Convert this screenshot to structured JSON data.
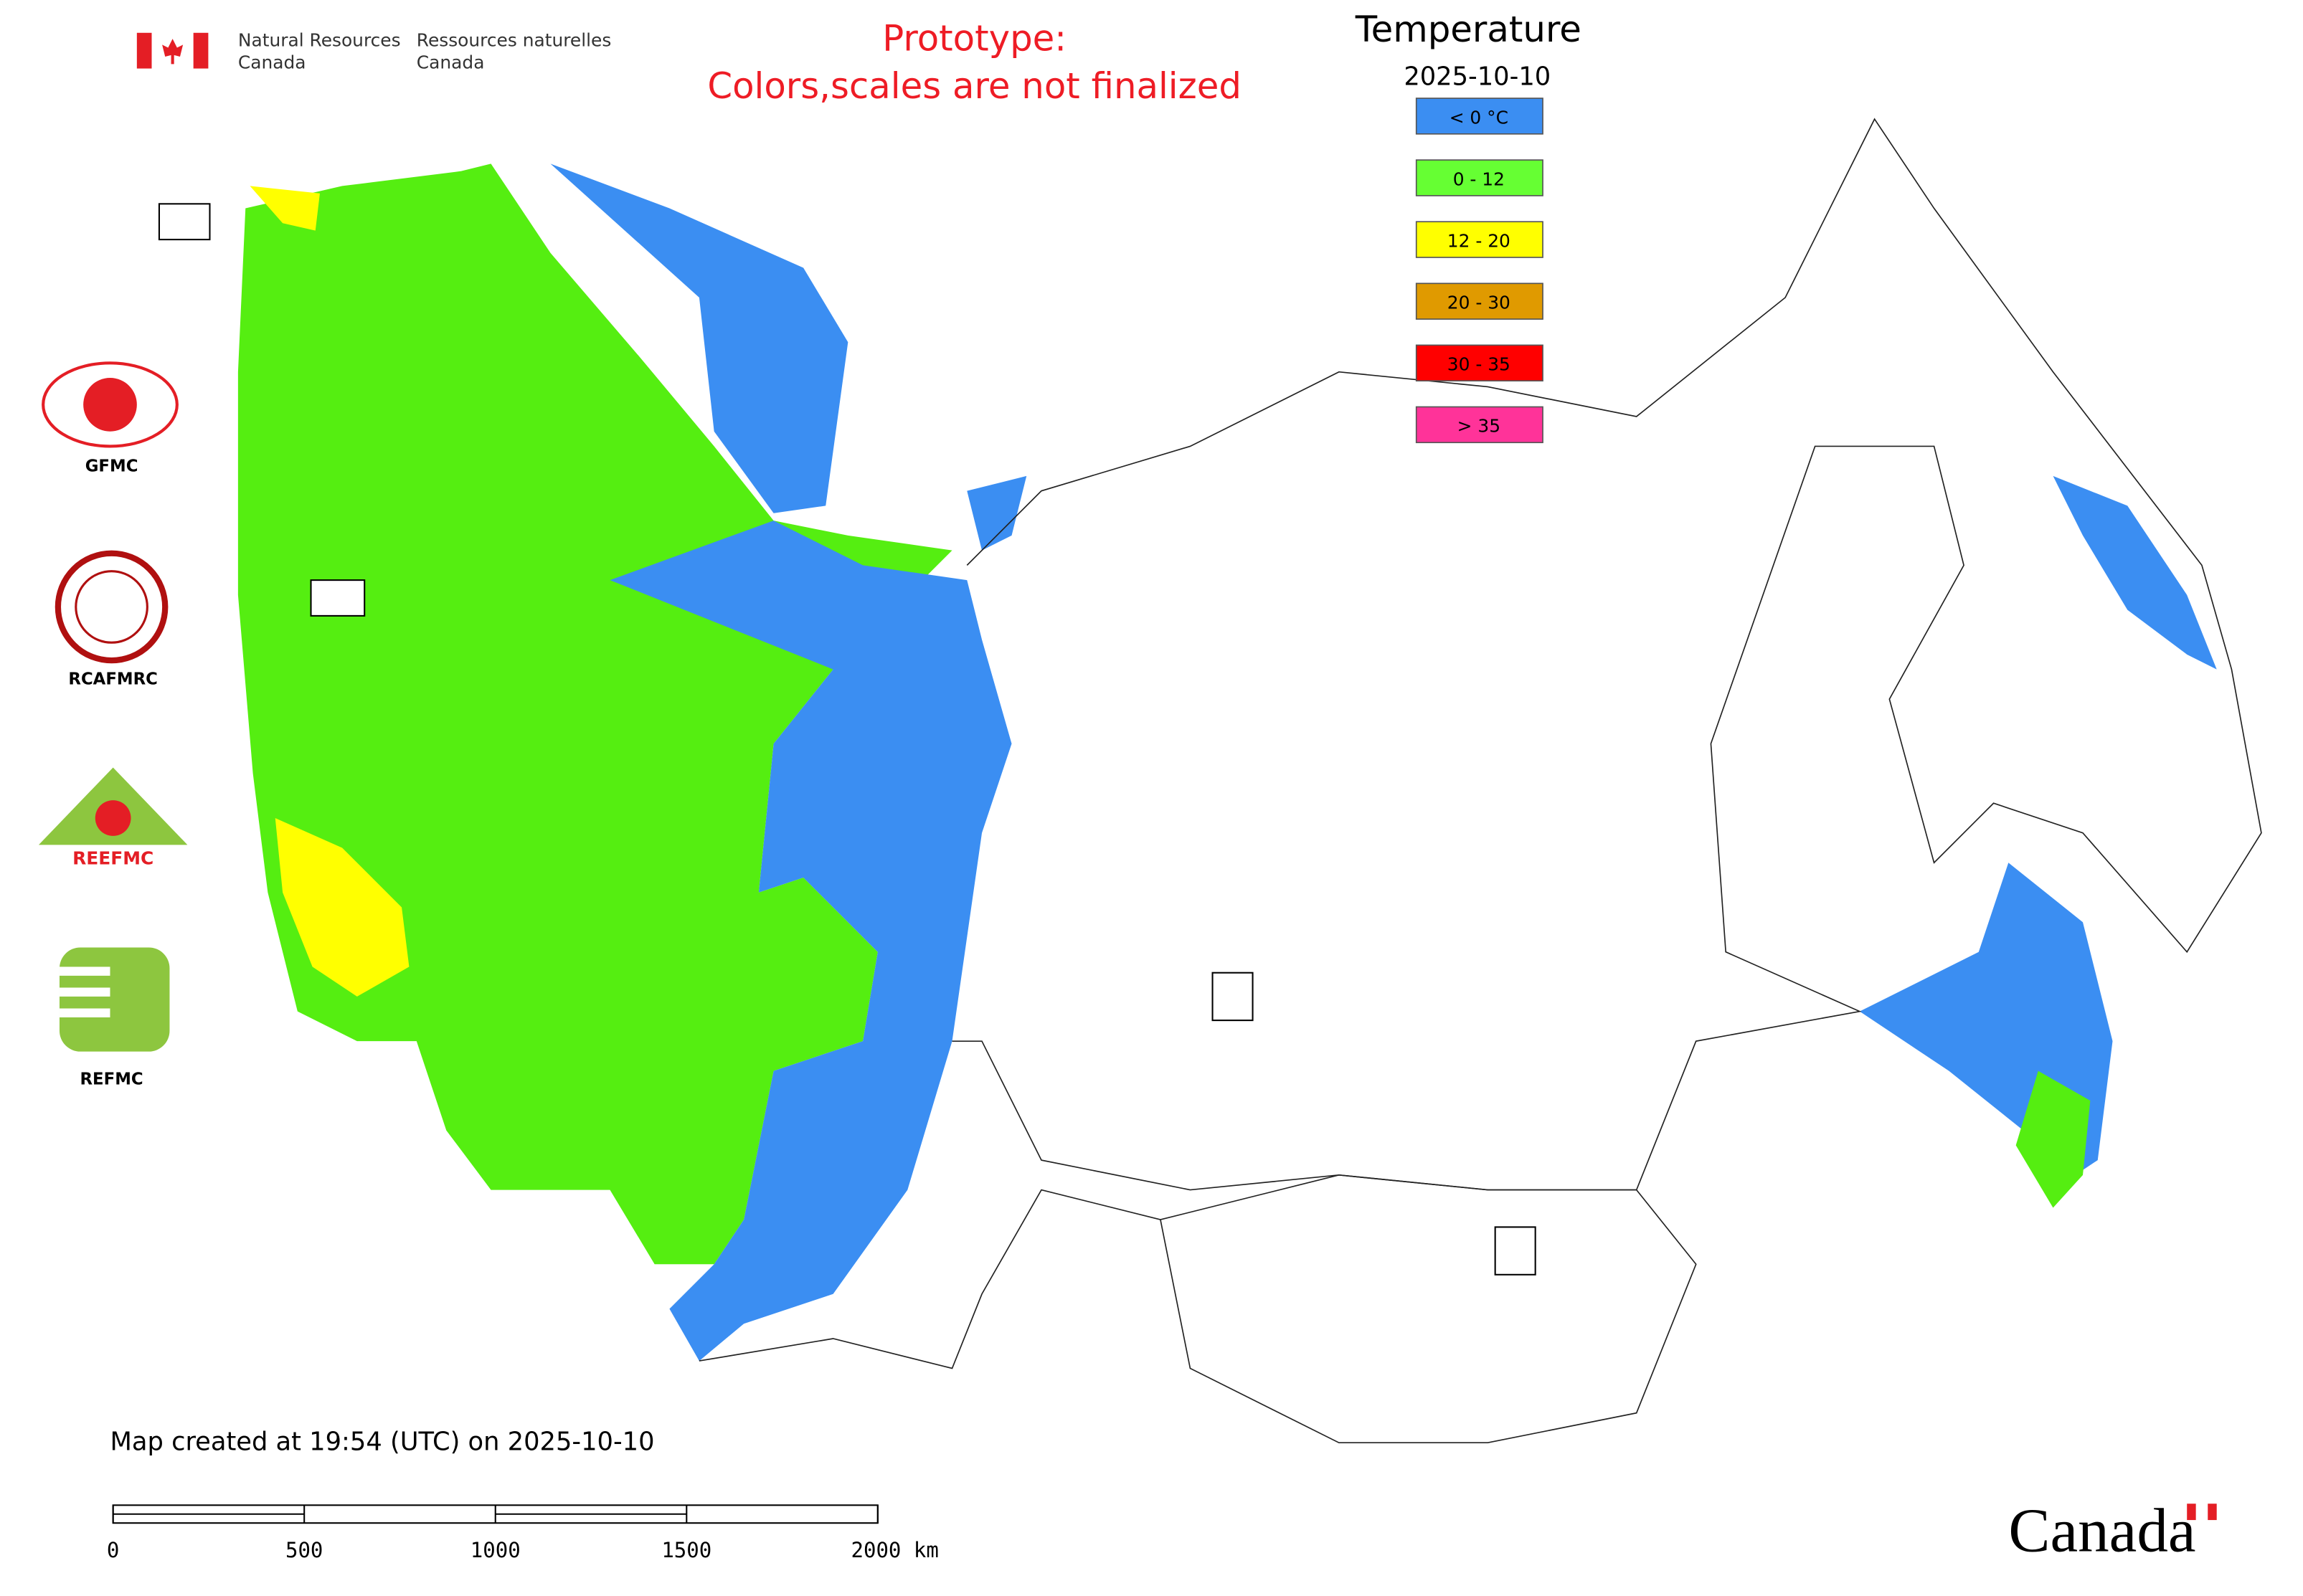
{
  "header": {
    "agency_en": [
      "Natural Resources",
      "Canada"
    ],
    "agency_fr": [
      "Ressources naturelles",
      "Canada"
    ]
  },
  "notice": [
    "Prototype:",
    "Colors,scales are not finalized"
  ],
  "legend": {
    "title": "Temperature",
    "date": "2025-10-10",
    "items": [
      {
        "label": "< 0 °C",
        "color": "#3b8ef2"
      },
      {
        "label": "0 - 12",
        "color": "#66ff33"
      },
      {
        "label": "12 - 20",
        "color": "#ffff00"
      },
      {
        "label": "20 - 30",
        "color": "#e09a00"
      },
      {
        "label": "30 - 35",
        "color": "#ff0000"
      },
      {
        "label": "> 35",
        "color": "#ff3399"
      }
    ]
  },
  "logos": [
    "GFMC",
    "RCAFMRC",
    "REEFMC",
    "REFMC"
  ],
  "footer": "Map created at 19:54 (UTC) on 2025-10-10",
  "scale_bar": {
    "xlim": [
      0,
      2000
    ],
    "xticks": [
      0,
      500,
      1000,
      1500,
      {
        "value": 2000,
        "label": "2000 km"
      }
    ]
  },
  "wordmark": "Canada"
}
